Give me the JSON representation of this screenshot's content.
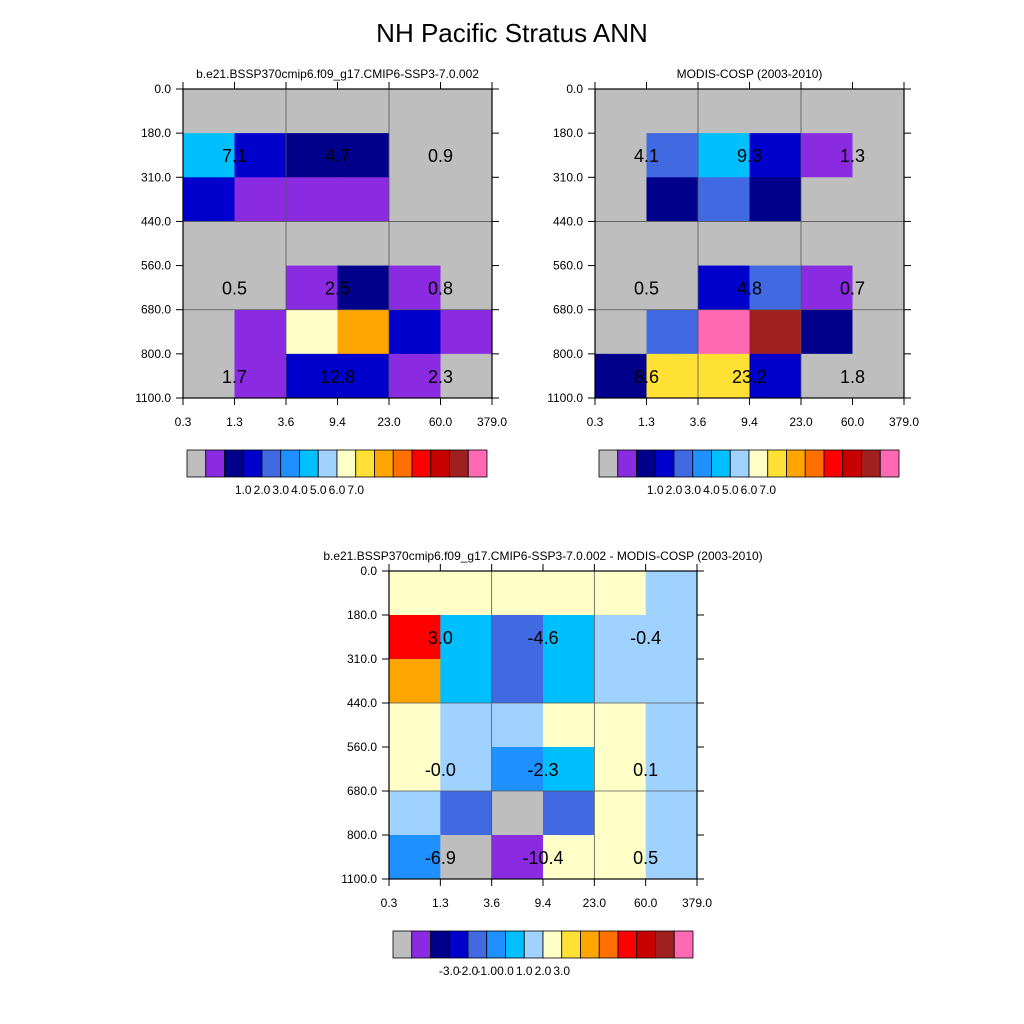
{
  "title": "NH Pacific Stratus ANN",
  "colors": {
    "missing": "#bebebe",
    "scale": [
      "#8a2be2",
      "#00008b",
      "#0000cd",
      "#4169e1",
      "#1e90ff",
      "#00bfff",
      "#a0d2ff",
      "#ffffc8",
      "#ffe135",
      "#ffa500",
      "#ff7000",
      "#ff0000",
      "#c80000",
      "#a02020",
      "#ff69b4"
    ],
    "gridline": "#555555"
  },
  "chart_data": [
    {
      "type": "heatmap",
      "title": "b.e21.BSSP370cmip6.f09_g17.CMIP6-SSP3-7.0.002",
      "x_ticks": [
        "0.3",
        "1.3",
        "3.6",
        "9.4",
        "23.0",
        "60.0",
        "379.0"
      ],
      "y_ticks": [
        "0.0",
        "180.0",
        "310.0",
        "440.0",
        "560.0",
        "680.0",
        "800.0",
        "1100.0"
      ],
      "cells": [
        [
          -1,
          -1,
          -1,
          -1,
          -1,
          -1
        ],
        [
          5,
          2,
          1,
          1,
          -1,
          -1
        ],
        [
          2,
          0,
          0,
          0,
          -1,
          -1
        ],
        [
          -1,
          -1,
          -1,
          -1,
          -1,
          -1
        ],
        [
          -1,
          -1,
          0,
          1,
          0,
          -1
        ],
        [
          -1,
          0,
          7,
          9,
          2,
          0
        ],
        [
          -1,
          0,
          2,
          2,
          0,
          -1
        ]
      ],
      "annotations": [
        {
          "label": "7.1",
          "col": 0,
          "row": 1
        },
        {
          "label": "4.7",
          "col": 2,
          "row": 1
        },
        {
          "label": "0.9",
          "col": 4,
          "row": 1
        },
        {
          "label": "0.5",
          "col": 0,
          "row": 4
        },
        {
          "label": "2.5",
          "col": 2,
          "row": 4
        },
        {
          "label": "0.8",
          "col": 4,
          "row": 4
        },
        {
          "label": "1.7",
          "col": 0,
          "row": 6
        },
        {
          "label": "12.8",
          "col": 2,
          "row": 6
        },
        {
          "label": "2.3",
          "col": 4,
          "row": 6
        }
      ],
      "colorbar_labels": [
        "1.0",
        "2.0",
        "3.0",
        "4.0",
        "5.0",
        "6.0",
        "7.0"
      ],
      "colorbar_first_label_box": 2,
      "colorbar_boxes": [
        -1,
        0,
        1,
        2,
        3,
        4,
        5,
        6,
        7,
        8,
        9,
        10,
        11,
        12,
        13,
        14
      ]
    },
    {
      "type": "heatmap",
      "title": "MODIS-COSP (2003-2010)",
      "x_ticks": [
        "0.3",
        "1.3",
        "3.6",
        "9.4",
        "23.0",
        "60.0",
        "379.0"
      ],
      "y_ticks": [
        "0.0",
        "180.0",
        "310.0",
        "440.0",
        "560.0",
        "680.0",
        "800.0",
        "1100.0"
      ],
      "cells": [
        [
          -1,
          -1,
          -1,
          -1,
          -1,
          -1
        ],
        [
          -1,
          3,
          5,
          2,
          0,
          -1
        ],
        [
          -1,
          1,
          3,
          1,
          -1,
          -1
        ],
        [
          -1,
          -1,
          -1,
          -1,
          -1,
          -1
        ],
        [
          -1,
          -1,
          2,
          3,
          0,
          -1
        ],
        [
          -1,
          3,
          14,
          13,
          1,
          -1
        ],
        [
          1,
          8,
          8,
          2,
          -1,
          -1
        ]
      ],
      "annotations": [
        {
          "label": "4.1",
          "col": 0,
          "row": 1
        },
        {
          "label": "9.3",
          "col": 2,
          "row": 1
        },
        {
          "label": "1.3",
          "col": 4,
          "row": 1
        },
        {
          "label": "0.5",
          "col": 0,
          "row": 4
        },
        {
          "label": "4.8",
          "col": 2,
          "row": 4
        },
        {
          "label": "0.7",
          "col": 4,
          "row": 4
        },
        {
          "label": "8.6",
          "col": 0,
          "row": 6
        },
        {
          "label": "23.2",
          "col": 2,
          "row": 6
        },
        {
          "label": "1.8",
          "col": 4,
          "row": 6
        }
      ],
      "colorbar_labels": [
        "1.0",
        "2.0",
        "3.0",
        "4.0",
        "5.0",
        "6.0",
        "7.0"
      ],
      "colorbar_first_label_box": 2,
      "colorbar_boxes": [
        -1,
        0,
        1,
        2,
        3,
        4,
        5,
        6,
        7,
        8,
        9,
        10,
        11,
        12,
        13,
        14
      ]
    },
    {
      "type": "heatmap",
      "title": "b.e21.BSSP370cmip6.f09_g17.CMIP6-SSP3-7.0.002 - MODIS-COSP (2003-2010)",
      "x_ticks": [
        "0.3",
        "1.3",
        "3.6",
        "9.4",
        "23.0",
        "60.0",
        "379.0"
      ],
      "y_ticks": [
        "0.0",
        "180.0",
        "310.0",
        "440.0",
        "560.0",
        "680.0",
        "800.0",
        "1100.0"
      ],
      "cells": [
        [
          7,
          7,
          7,
          7,
          7,
          6
        ],
        [
          11,
          5,
          3,
          5,
          6,
          6
        ],
        [
          9,
          5,
          3,
          5,
          6,
          6
        ],
        [
          7,
          6,
          6,
          7,
          7,
          6
        ],
        [
          7,
          6,
          4,
          5,
          7,
          6
        ],
        [
          6,
          3,
          -1,
          3,
          7,
          6
        ],
        [
          4,
          -1,
          0,
          7,
          7,
          6
        ]
      ],
      "annotations": [
        {
          "label": "3.0",
          "col": 0,
          "row": 1
        },
        {
          "label": "-4.6",
          "col": 2,
          "row": 1
        },
        {
          "label": "-0.4",
          "col": 4,
          "row": 1
        },
        {
          "label": "-0.0",
          "col": 0,
          "row": 4
        },
        {
          "label": "-2.3",
          "col": 2,
          "row": 4
        },
        {
          "label": "0.1",
          "col": 4,
          "row": 4
        },
        {
          "label": "-6.9",
          "col": 0,
          "row": 6
        },
        {
          "label": "-10.4",
          "col": 2,
          "row": 6
        },
        {
          "label": "0.5",
          "col": 4,
          "row": 6
        }
      ],
      "colorbar_labels": [
        "-3.0",
        "-2.0",
        "-1.0",
        "0.0",
        "1.0",
        "2.0",
        "3.0"
      ],
      "colorbar_first_label_box": 2,
      "colorbar_boxes": [
        -1,
        0,
        1,
        2,
        3,
        4,
        5,
        6,
        7,
        8,
        9,
        10,
        11,
        12,
        13,
        14
      ]
    }
  ]
}
